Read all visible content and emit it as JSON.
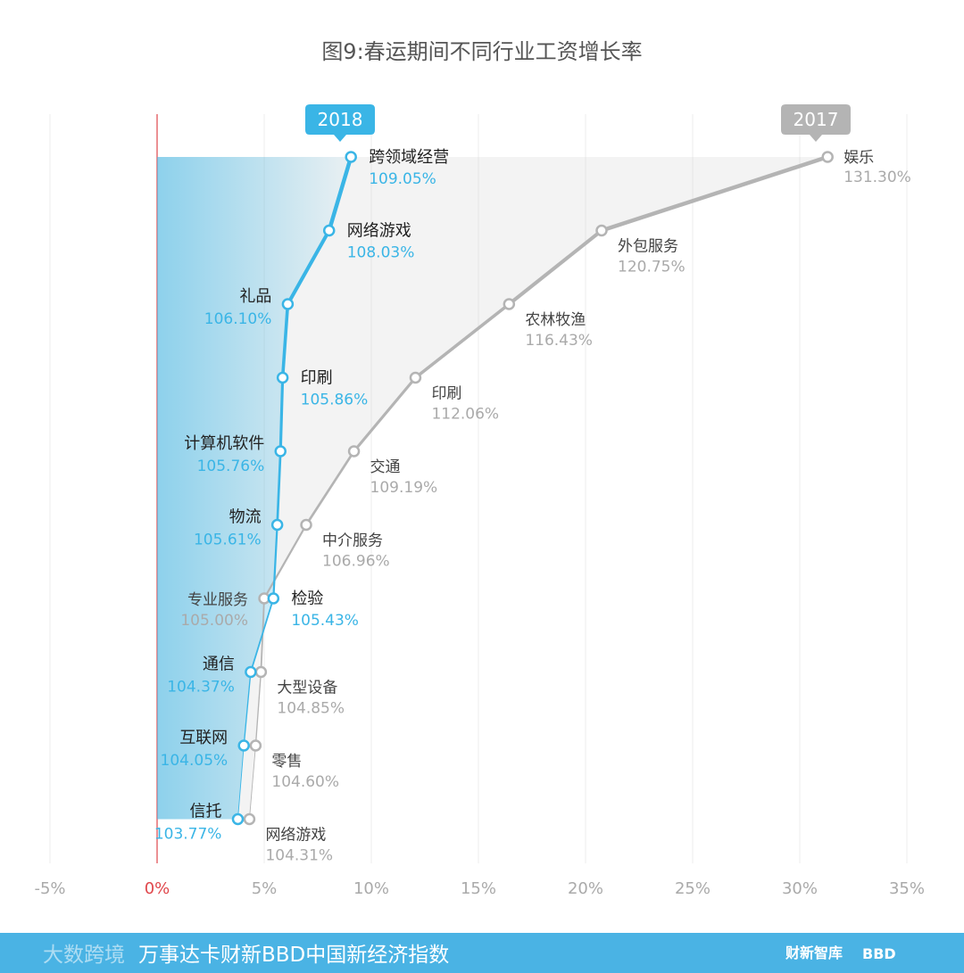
{
  "colors": {
    "series_2018": "#3ab5e6",
    "series_2017": "#b4b4b4",
    "zero_line": "#e0474c",
    "footer_bg": "#4ab3e4"
  },
  "chart_data": {
    "type": "line",
    "title": "图9:春运期间不同行业工资增长率",
    "x_tick_labels": [
      "-5%",
      "0%",
      "5%",
      "10%",
      "15%",
      "20%",
      "25%",
      "30%",
      "35%"
    ],
    "xlim": [
      -5,
      35
    ],
    "grid": true,
    "series": [
      {
        "name": "2018",
        "points": [
          {
            "industry": "跨领域经营",
            "value": 9.05,
            "label": "109.05%"
          },
          {
            "industry": "网络游戏",
            "value": 8.03,
            "label": "108.03%"
          },
          {
            "industry": "礼品",
            "value": 6.1,
            "label": "106.10%"
          },
          {
            "industry": "印刷",
            "value": 5.86,
            "label": "105.86%"
          },
          {
            "industry": "计算机软件",
            "value": 5.76,
            "label": "105.76%"
          },
          {
            "industry": "物流",
            "value": 5.61,
            "label": "105.61%"
          },
          {
            "industry": "检验",
            "value": 5.43,
            "label": "105.43%"
          },
          {
            "industry": "通信",
            "value": 4.37,
            "label": "104.37%"
          },
          {
            "industry": "互联网",
            "value": 4.05,
            "label": "104.05%"
          },
          {
            "industry": "信托",
            "value": 3.77,
            "label": "103.77%"
          }
        ]
      },
      {
        "name": "2017",
        "points": [
          {
            "industry": "娱乐",
            "value": 31.3,
            "label": "131.30%"
          },
          {
            "industry": "外包服务",
            "value": 20.75,
            "label": "120.75%"
          },
          {
            "industry": "农林牧渔",
            "value": 16.43,
            "label": "116.43%"
          },
          {
            "industry": "印刷",
            "value": 12.06,
            "label": "112.06%"
          },
          {
            "industry": "交通",
            "value": 9.19,
            "label": "109.19%"
          },
          {
            "industry": "中介服务",
            "value": 6.96,
            "label": "106.96%"
          },
          {
            "industry": "专业服务",
            "value": 5.0,
            "label": "105.00%"
          },
          {
            "industry": "大型设备",
            "value": 4.85,
            "label": "104.85%"
          },
          {
            "industry": "零售",
            "value": 4.6,
            "label": "104.60%"
          },
          {
            "industry": "网络游戏",
            "value": 4.31,
            "label": "104.31%"
          }
        ]
      }
    ]
  },
  "footer": {
    "text": "万事达卡财新BBD中国新经济指数",
    "watermark": "大数跨境",
    "brand_left": "财新智库",
    "brand_right": "BBD"
  }
}
